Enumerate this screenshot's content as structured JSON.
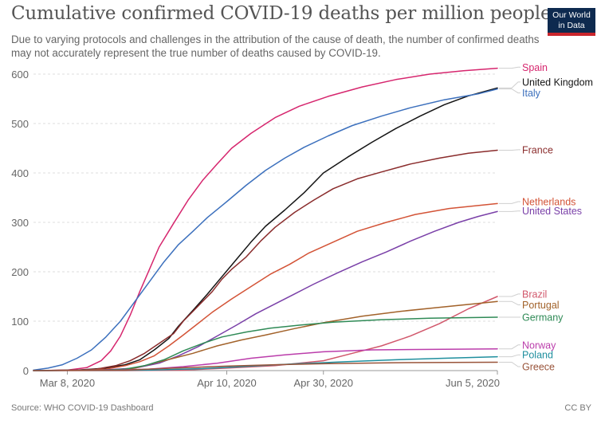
{
  "title": "Cumulative confirmed COVID-19 deaths per million people",
  "subtitle": "Due to varying protocols and challenges in the attribution of the cause of death, the number of confirmed deaths may not accurately represent the true number of deaths caused by COVID-19.",
  "logo": {
    "line1": "Our World",
    "line2": "in Data",
    "bg_color": "#0e2a4f",
    "accent_color": "#c9252c"
  },
  "source": "Source: WHO COVID-19 Dashboard",
  "license": "CC BY",
  "chart_data": {
    "type": "line",
    "x_start": "2020-03-01",
    "x_end": "2020-06-05",
    "x_ticks": [
      {
        "date": "2020-03-08",
        "label": "Mar 8, 2020"
      },
      {
        "date": "2020-04-10",
        "label": "Apr 10, 2020"
      },
      {
        "date": "2020-04-30",
        "label": "Apr 30, 2020"
      },
      {
        "date": "2020-06-05",
        "label": "Jun 5, 2020"
      }
    ],
    "ylim": [
      0,
      600
    ],
    "y_ticks": [
      0,
      100,
      200,
      300,
      400,
      500,
      600
    ],
    "grid": "horizontal dashed",
    "legend": "right, line end labels",
    "series": [
      {
        "name": "Spain",
        "color": "#d6266e",
        "label_y": 614,
        "points": [
          [
            "2020-03-01",
            0
          ],
          [
            "2020-03-08",
            1
          ],
          [
            "2020-03-12",
            6
          ],
          [
            "2020-03-15",
            20
          ],
          [
            "2020-03-17",
            40
          ],
          [
            "2020-03-19",
            70
          ],
          [
            "2020-03-21",
            112
          ],
          [
            "2020-03-23",
            160
          ],
          [
            "2020-03-25",
            205
          ],
          [
            "2020-03-27",
            250
          ],
          [
            "2020-03-30",
            298
          ],
          [
            "2020-04-02",
            345
          ],
          [
            "2020-04-05",
            385
          ],
          [
            "2020-04-08",
            418
          ],
          [
            "2020-04-11",
            450
          ],
          [
            "2020-04-15",
            480
          ],
          [
            "2020-04-20",
            512
          ],
          [
            "2020-04-25",
            535
          ],
          [
            "2020-05-01",
            555
          ],
          [
            "2020-05-08",
            574
          ],
          [
            "2020-05-15",
            589
          ],
          [
            "2020-05-22",
            600
          ],
          [
            "2020-05-29",
            607
          ],
          [
            "2020-06-05",
            612
          ]
        ]
      },
      {
        "name": "United Kingdom",
        "color": "#141414",
        "label_y": 584,
        "points": [
          [
            "2020-03-01",
            0
          ],
          [
            "2020-03-10",
            1
          ],
          [
            "2020-03-16",
            5
          ],
          [
            "2020-03-20",
            12
          ],
          [
            "2020-03-23",
            22
          ],
          [
            "2020-03-26",
            42
          ],
          [
            "2020-03-29",
            65
          ],
          [
            "2020-03-31",
            90
          ],
          [
            "2020-04-03",
            122
          ],
          [
            "2020-04-06",
            155
          ],
          [
            "2020-04-09",
            190
          ],
          [
            "2020-04-12",
            225
          ],
          [
            "2020-04-15",
            260
          ],
          [
            "2020-04-18",
            292
          ],
          [
            "2020-04-22",
            325
          ],
          [
            "2020-04-26",
            360
          ],
          [
            "2020-04-30",
            400
          ],
          [
            "2020-05-05",
            432
          ],
          [
            "2020-05-10",
            462
          ],
          [
            "2020-05-15",
            490
          ],
          [
            "2020-05-20",
            515
          ],
          [
            "2020-05-25",
            538
          ],
          [
            "2020-05-30",
            556
          ],
          [
            "2020-06-05",
            572
          ]
        ]
      },
      {
        "name": "Italy",
        "color": "#3c70bd",
        "label_y": 562,
        "points": [
          [
            "2020-03-01",
            1
          ],
          [
            "2020-03-04",
            5
          ],
          [
            "2020-03-07",
            12
          ],
          [
            "2020-03-10",
            25
          ],
          [
            "2020-03-13",
            42
          ],
          [
            "2020-03-16",
            68
          ],
          [
            "2020-03-19",
            100
          ],
          [
            "2020-03-22",
            140
          ],
          [
            "2020-03-25",
            180
          ],
          [
            "2020-03-28",
            220
          ],
          [
            "2020-03-31",
            255
          ],
          [
            "2020-04-03",
            282
          ],
          [
            "2020-04-06",
            310
          ],
          [
            "2020-04-10",
            342
          ],
          [
            "2020-04-14",
            375
          ],
          [
            "2020-04-18",
            405
          ],
          [
            "2020-04-22",
            430
          ],
          [
            "2020-04-26",
            452
          ],
          [
            "2020-05-01",
            475
          ],
          [
            "2020-05-06",
            496
          ],
          [
            "2020-05-12",
            515
          ],
          [
            "2020-05-18",
            532
          ],
          [
            "2020-05-25",
            548
          ],
          [
            "2020-06-01",
            560
          ],
          [
            "2020-06-05",
            570
          ]
        ]
      },
      {
        "name": "France",
        "color": "#8a2c2c",
        "label_y": 447,
        "points": [
          [
            "2020-03-01",
            0
          ],
          [
            "2020-03-10",
            1
          ],
          [
            "2020-03-14",
            3
          ],
          [
            "2020-03-18",
            10
          ],
          [
            "2020-03-21",
            20
          ],
          [
            "2020-03-24",
            35
          ],
          [
            "2020-03-27",
            55
          ],
          [
            "2020-03-30",
            75
          ],
          [
            "2020-04-01",
            100
          ],
          [
            "2020-04-03",
            120
          ],
          [
            "2020-04-05",
            140
          ],
          [
            "2020-04-07",
            160
          ],
          [
            "2020-04-09",
            185
          ],
          [
            "2020-04-11",
            205
          ],
          [
            "2020-04-14",
            230
          ],
          [
            "2020-04-17",
            262
          ],
          [
            "2020-04-20",
            290
          ],
          [
            "2020-04-24",
            320
          ],
          [
            "2020-04-28",
            345
          ],
          [
            "2020-05-02",
            368
          ],
          [
            "2020-05-07",
            388
          ],
          [
            "2020-05-12",
            402
          ],
          [
            "2020-05-18",
            418
          ],
          [
            "2020-05-24",
            430
          ],
          [
            "2020-05-30",
            440
          ],
          [
            "2020-06-05",
            446
          ]
        ]
      },
      {
        "name": "Netherlands",
        "color": "#d35336",
        "label_y": 342,
        "points": [
          [
            "2020-03-01",
            0
          ],
          [
            "2020-03-12",
            1
          ],
          [
            "2020-03-16",
            3
          ],
          [
            "2020-03-20",
            10
          ],
          [
            "2020-03-23",
            18
          ],
          [
            "2020-03-26",
            30
          ],
          [
            "2020-03-29",
            50
          ],
          [
            "2020-04-01",
            72
          ],
          [
            "2020-04-04",
            95
          ],
          [
            "2020-04-07",
            118
          ],
          [
            "2020-04-11",
            145
          ],
          [
            "2020-04-15",
            170
          ],
          [
            "2020-04-19",
            195
          ],
          [
            "2020-04-23",
            215
          ],
          [
            "2020-04-27",
            238
          ],
          [
            "2020-05-02",
            260
          ],
          [
            "2020-05-07",
            282
          ],
          [
            "2020-05-13",
            300
          ],
          [
            "2020-05-19",
            316
          ],
          [
            "2020-05-26",
            328
          ],
          [
            "2020-06-05",
            338
          ]
        ]
      },
      {
        "name": "United States",
        "color": "#7a40a8",
        "label_y": 323,
        "points": [
          [
            "2020-03-01",
            0
          ],
          [
            "2020-03-15",
            1
          ],
          [
            "2020-03-22",
            5
          ],
          [
            "2020-03-27",
            15
          ],
          [
            "2020-03-31",
            30
          ],
          [
            "2020-04-04",
            48
          ],
          [
            "2020-04-08",
            70
          ],
          [
            "2020-04-12",
            92
          ],
          [
            "2020-04-16",
            115
          ],
          [
            "2020-04-20",
            135
          ],
          [
            "2020-04-24",
            155
          ],
          [
            "2020-04-28",
            175
          ],
          [
            "2020-05-03",
            198
          ],
          [
            "2020-05-08",
            220
          ],
          [
            "2020-05-13",
            240
          ],
          [
            "2020-05-18",
            262
          ],
          [
            "2020-05-23",
            282
          ],
          [
            "2020-05-28",
            300
          ],
          [
            "2020-06-01",
            312
          ],
          [
            "2020-06-05",
            322
          ]
        ]
      },
      {
        "name": "Brazil",
        "color": "#d1576b",
        "label_y": 155,
        "points": [
          [
            "2020-03-01",
            0
          ],
          [
            "2020-03-20",
            0
          ],
          [
            "2020-04-01",
            1
          ],
          [
            "2020-04-10",
            5
          ],
          [
            "2020-04-20",
            10
          ],
          [
            "2020-04-30",
            20
          ],
          [
            "2020-05-06",
            35
          ],
          [
            "2020-05-12",
            50
          ],
          [
            "2020-05-18",
            70
          ],
          [
            "2020-05-24",
            95
          ],
          [
            "2020-05-30",
            125
          ],
          [
            "2020-06-05",
            150
          ]
        ]
      },
      {
        "name": "Portugal",
        "color": "#a2622a",
        "label_y": 133,
        "points": [
          [
            "2020-03-01",
            0
          ],
          [
            "2020-03-18",
            1
          ],
          [
            "2020-03-22",
            5
          ],
          [
            "2020-03-26",
            15
          ],
          [
            "2020-03-30",
            25
          ],
          [
            "2020-04-03",
            35
          ],
          [
            "2020-04-08",
            50
          ],
          [
            "2020-04-13",
            62
          ],
          [
            "2020-04-18",
            72
          ],
          [
            "2020-04-24",
            85
          ],
          [
            "2020-04-30",
            97
          ],
          [
            "2020-05-08",
            110
          ],
          [
            "2020-05-16",
            120
          ],
          [
            "2020-05-24",
            128
          ],
          [
            "2020-06-01",
            136
          ],
          [
            "2020-06-05",
            140
          ]
        ]
      },
      {
        "name": "Germany",
        "color": "#2f8a56",
        "label_y": 108,
        "points": [
          [
            "2020-03-01",
            0
          ],
          [
            "2020-03-16",
            1
          ],
          [
            "2020-03-20",
            3
          ],
          [
            "2020-03-24",
            10
          ],
          [
            "2020-03-28",
            22
          ],
          [
            "2020-04-01",
            40
          ],
          [
            "2020-04-05",
            55
          ],
          [
            "2020-04-09",
            68
          ],
          [
            "2020-04-14",
            78
          ],
          [
            "2020-04-19",
            86
          ],
          [
            "2020-04-25",
            92
          ],
          [
            "2020-05-02",
            98
          ],
          [
            "2020-05-12",
            103
          ],
          [
            "2020-05-22",
            106
          ],
          [
            "2020-06-05",
            108
          ]
        ]
      },
      {
        "name": "Norway",
        "color": "#bb3dab",
        "label_y": 52,
        "points": [
          [
            "2020-03-01",
            0
          ],
          [
            "2020-03-18",
            1
          ],
          [
            "2020-03-25",
            3
          ],
          [
            "2020-04-01",
            8
          ],
          [
            "2020-04-08",
            15
          ],
          [
            "2020-04-15",
            25
          ],
          [
            "2020-04-22",
            32
          ],
          [
            "2020-04-30",
            38
          ],
          [
            "2020-05-10",
            42
          ],
          [
            "2020-05-25",
            43
          ],
          [
            "2020-06-05",
            44
          ]
        ]
      },
      {
        "name": "Poland",
        "color": "#1f8f9e",
        "label_y": 32,
        "points": [
          [
            "2020-03-01",
            0
          ],
          [
            "2020-03-25",
            1
          ],
          [
            "2020-04-05",
            4
          ],
          [
            "2020-04-15",
            9
          ],
          [
            "2020-04-25",
            14
          ],
          [
            "2020-05-05",
            18
          ],
          [
            "2020-05-15",
            22
          ],
          [
            "2020-05-25",
            25
          ],
          [
            "2020-06-05",
            28
          ]
        ]
      },
      {
        "name": "Greece",
        "color": "#99543a",
        "label_y": 8,
        "points": [
          [
            "2020-03-01",
            0
          ],
          [
            "2020-03-20",
            1
          ],
          [
            "2020-03-30",
            5
          ],
          [
            "2020-04-10",
            9
          ],
          [
            "2020-04-20",
            12
          ],
          [
            "2020-05-01",
            14
          ],
          [
            "2020-05-15",
            16
          ],
          [
            "2020-06-05",
            17
          ]
        ]
      }
    ]
  }
}
